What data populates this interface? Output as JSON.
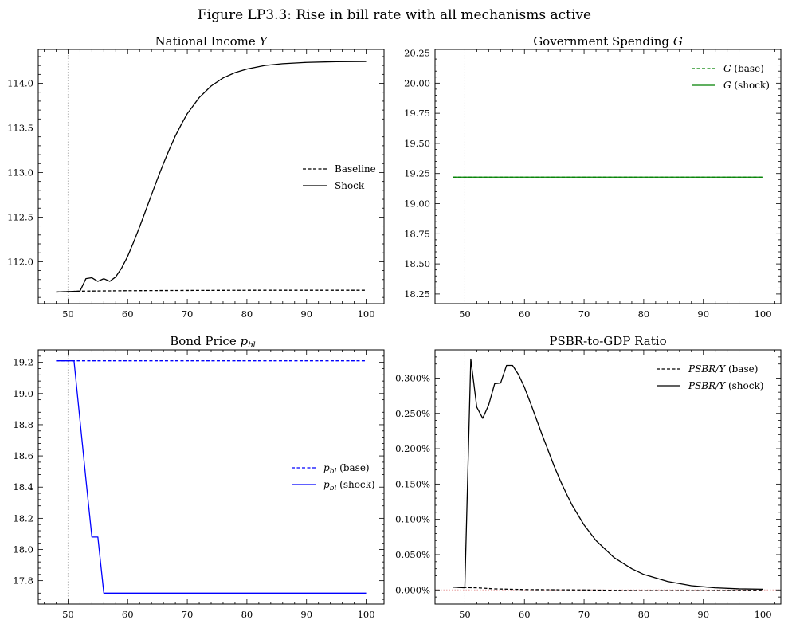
{
  "figure": {
    "title": "Figure LP3.3: Rise in bill rate with all mechanisms active"
  },
  "chart_data": [
    {
      "type": "line",
      "title": "National Income Y",
      "xlabel": "",
      "ylabel": "",
      "xlim": [
        45,
        103
      ],
      "ylim": [
        111.53,
        114.38
      ],
      "xticks": [
        50,
        60,
        70,
        80,
        90,
        100
      ],
      "yticks": [
        112.0,
        112.5,
        113.0,
        113.5,
        114.0
      ],
      "ytick_labels": [
        "112.0",
        "112.5",
        "113.0",
        "113.5",
        "114.0"
      ],
      "vline": 50,
      "hline": null,
      "legend_position": "center-right",
      "series": [
        {
          "name": "Baseline",
          "color": "#000000",
          "style": "dashed",
          "x": [
            48,
            50,
            52,
            60,
            70,
            80,
            90,
            100
          ],
          "y": [
            111.66,
            111.665,
            111.67,
            111.675,
            111.678,
            111.68,
            111.68,
            111.68
          ]
        },
        {
          "name": "Shock",
          "color": "#000000",
          "style": "solid",
          "x": [
            48,
            50,
            52,
            53,
            54,
            55,
            56,
            57,
            58,
            59,
            60,
            61,
            62,
            63,
            64,
            65,
            66,
            67,
            68,
            69,
            70,
            72,
            74,
            76,
            78,
            80,
            83,
            86,
            90,
            95,
            100
          ],
          "y": [
            111.66,
            111.665,
            111.67,
            111.81,
            111.82,
            111.78,
            111.81,
            111.78,
            111.83,
            111.93,
            112.06,
            112.22,
            112.39,
            112.57,
            112.75,
            112.93,
            113.1,
            113.26,
            113.41,
            113.54,
            113.66,
            113.84,
            113.97,
            114.06,
            114.12,
            114.16,
            114.2,
            114.22,
            114.235,
            114.243,
            114.245
          ]
        }
      ]
    },
    {
      "type": "line",
      "title": "Government Spending G",
      "xlabel": "",
      "ylabel": "",
      "xlim": [
        45,
        103
      ],
      "ylim": [
        18.17,
        20.28
      ],
      "xticks": [
        50,
        60,
        70,
        80,
        90,
        100
      ],
      "yticks": [
        18.25,
        18.5,
        18.75,
        19.0,
        19.25,
        19.5,
        19.75,
        20.0,
        20.25
      ],
      "ytick_labels": [
        "18.25",
        "18.50",
        "18.75",
        "19.00",
        "19.25",
        "19.50",
        "19.75",
        "20.00",
        "20.25"
      ],
      "vline": 50,
      "hline": null,
      "legend_position": "top-right",
      "series": [
        {
          "name": "G (base)",
          "color": "#008000",
          "style": "dashed",
          "x": [
            48,
            100
          ],
          "y": [
            19.22,
            19.22
          ]
        },
        {
          "name": "G (shock)",
          "color": "#008000",
          "style": "solid",
          "x": [
            48,
            100
          ],
          "y": [
            19.22,
            19.22
          ]
        }
      ]
    },
    {
      "type": "line",
      "title": "Bond Price p_bl",
      "xlabel": "",
      "ylabel": "",
      "xlim": [
        45,
        103
      ],
      "ylim": [
        17.65,
        19.28
      ],
      "xticks": [
        50,
        60,
        70,
        80,
        90,
        100
      ],
      "yticks": [
        17.8,
        18.0,
        18.2,
        18.4,
        18.6,
        18.8,
        19.0,
        19.2
      ],
      "ytick_labels": [
        "17.8",
        "18.0",
        "18.2",
        "18.4",
        "18.6",
        "18.8",
        "19.0",
        "19.2"
      ],
      "vline": 50,
      "hline": null,
      "legend_position": "center-right",
      "series": [
        {
          "name": "p_bl (base)",
          "color": "#0000ff",
          "style": "dashed",
          "x": [
            48,
            100
          ],
          "y": [
            19.21,
            19.21
          ]
        },
        {
          "name": "p_bl (shock)",
          "color": "#0000ff",
          "style": "solid",
          "x": [
            48,
            49,
            50,
            51,
            52,
            53,
            54,
            55,
            56,
            57,
            100
          ],
          "y": [
            19.21,
            19.21,
            19.21,
            19.21,
            18.83,
            18.45,
            18.08,
            18.08,
            17.72,
            17.72,
            17.72
          ]
        }
      ]
    },
    {
      "type": "line",
      "title": "PSBR-to-GDP Ratio",
      "xlabel": "",
      "ylabel": "",
      "xlim": [
        45,
        103
      ],
      "ylim": [
        -0.0002,
        0.0034
      ],
      "xticks": [
        50,
        60,
        70,
        80,
        90,
        100
      ],
      "yticks": [
        0.0,
        0.0005,
        0.001,
        0.0015,
        0.002,
        0.0025,
        0.003
      ],
      "ytick_labels": [
        "0.000%",
        "0.050%",
        "0.100%",
        "0.150%",
        "0.200%",
        "0.250%",
        "0.300%"
      ],
      "vline": 50,
      "hline": 0,
      "legend_position": "top-right",
      "series": [
        {
          "name": "PSBR/Y (base)",
          "color": "#000000",
          "style": "dashed",
          "x": [
            48,
            50,
            52,
            55,
            60,
            70,
            80,
            90,
            100
          ],
          "y": [
            4e-05,
            3.5e-05,
            3e-05,
            1.5e-05,
            5e-06,
            0.0,
            -1e-05,
            -1e-05,
            -5e-06
          ]
        },
        {
          "name": "PSBR/Y (shock)",
          "color": "#000000",
          "style": "solid",
          "x": [
            48,
            50,
            51,
            52,
            53,
            54,
            55,
            56,
            57,
            58,
            59,
            60,
            61,
            62,
            63,
            64,
            65,
            66,
            67,
            68,
            70,
            72,
            75,
            78,
            80,
            84,
            88,
            92,
            96,
            100
          ],
          "y": [
            4e-05,
            3e-05,
            0.00327,
            0.00259,
            0.00243,
            0.00262,
            0.00292,
            0.00293,
            0.00318,
            0.00318,
            0.00305,
            0.00287,
            0.00265,
            0.00242,
            0.00219,
            0.00197,
            0.00175,
            0.00155,
            0.00137,
            0.0012,
            0.00092,
            0.0007,
            0.00046,
            0.0003,
            0.00022,
            0.00012,
            6e-05,
            3e-05,
            1.5e-05,
            1e-05
          ]
        }
      ]
    }
  ]
}
